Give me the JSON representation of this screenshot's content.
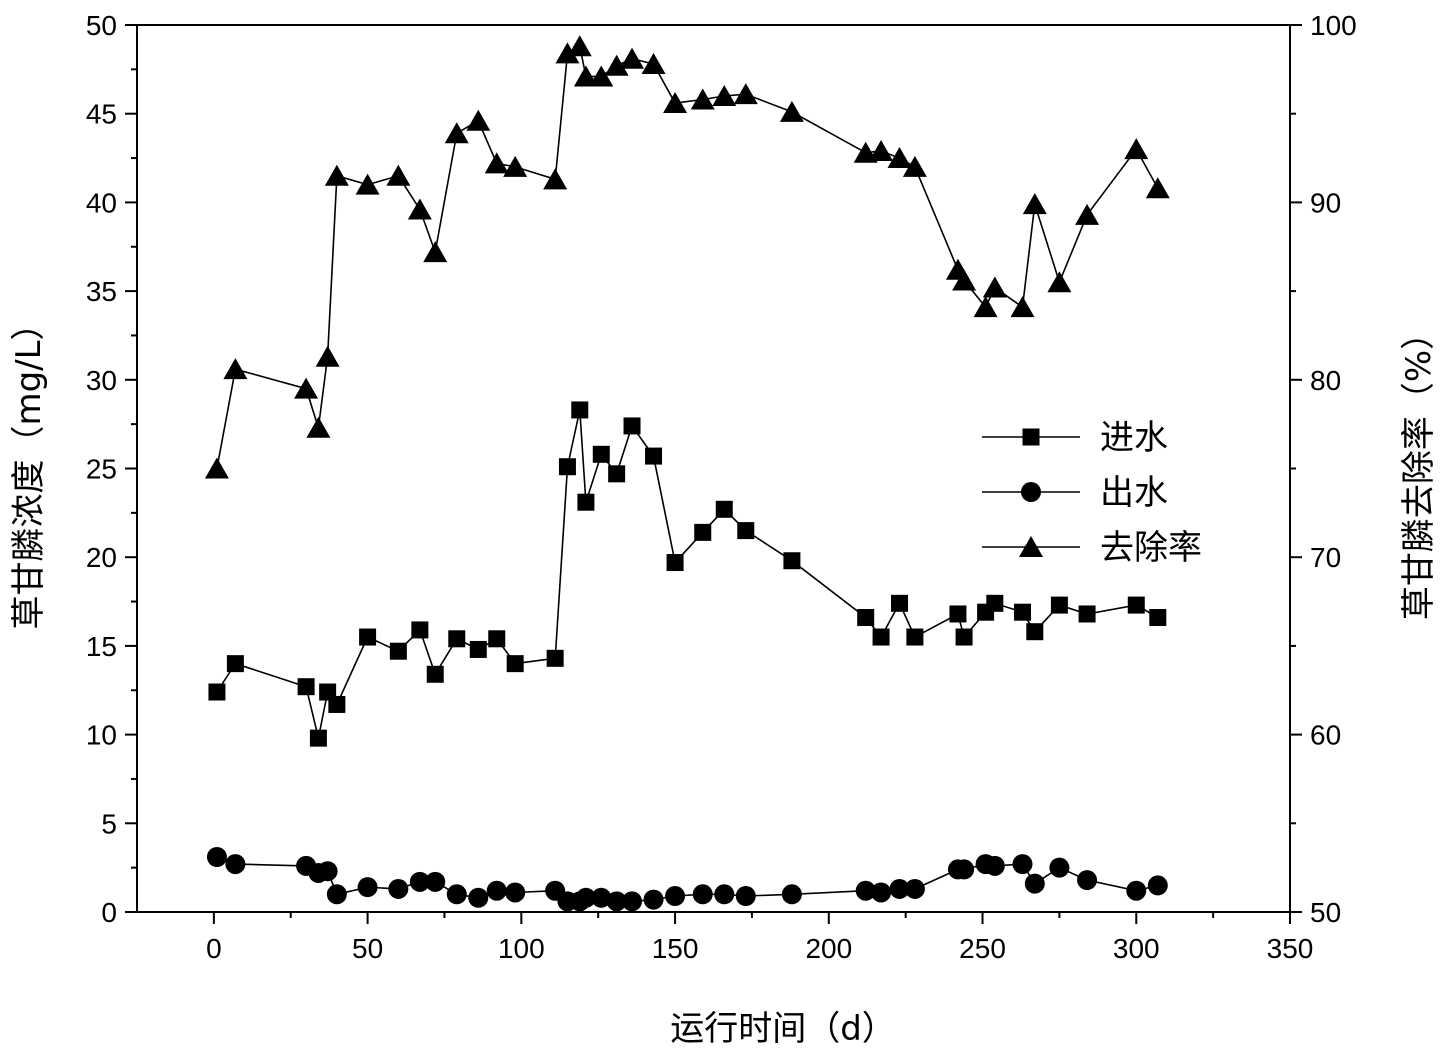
{
  "chart_data": {
    "type": "line",
    "xlabel": "运行时间（d）",
    "ylabel": "草甘膦浓度（mg/L）",
    "y2label": "草甘膦去除率（%）",
    "xlim": [
      -25,
      350
    ],
    "ylim": [
      0,
      50
    ],
    "y2lim": [
      50,
      100
    ],
    "xticks": [
      0,
      50,
      100,
      150,
      200,
      250,
      300,
      350
    ],
    "yticks": [
      0,
      5,
      10,
      15,
      20,
      25,
      30,
      35,
      40,
      45,
      50
    ],
    "y2ticks": [
      50,
      60,
      70,
      80,
      90,
      100
    ],
    "legend_position": "right-middle",
    "series": [
      {
        "name": "进水",
        "axis": "left",
        "marker": "square",
        "x": [
          1,
          7,
          30,
          34,
          37,
          40,
          50,
          60,
          67,
          72,
          79,
          86,
          92,
          98,
          111,
          115,
          119,
          121,
          126,
          131,
          136,
          143,
          150,
          159,
          166,
          173,
          188,
          212,
          217,
          223,
          228,
          242,
          244,
          251,
          254,
          263,
          267,
          275,
          284,
          300,
          307
        ],
        "y": [
          12.4,
          14.0,
          12.7,
          9.8,
          12.4,
          11.7,
          15.5,
          14.7,
          15.9,
          13.4,
          15.4,
          14.8,
          15.4,
          14.0,
          14.3,
          25.1,
          28.3,
          23.1,
          25.8,
          24.7,
          27.4,
          25.7,
          19.7,
          21.4,
          22.7,
          21.5,
          19.8,
          16.6,
          15.5,
          17.4,
          15.5,
          16.8,
          15.5,
          16.9,
          17.4,
          16.9,
          15.8,
          17.3,
          16.8,
          17.3,
          16.6
        ]
      },
      {
        "name": "出水",
        "axis": "left",
        "marker": "circle",
        "x": [
          1,
          7,
          30,
          34,
          37,
          40,
          50,
          60,
          67,
          72,
          79,
          86,
          92,
          98,
          111,
          115,
          119,
          121,
          126,
          131,
          136,
          143,
          150,
          159,
          166,
          173,
          188,
          212,
          217,
          223,
          228,
          242,
          244,
          251,
          254,
          263,
          267,
          275,
          284,
          300,
          307
        ],
        "y": [
          3.1,
          2.7,
          2.6,
          2.2,
          2.3,
          1.0,
          1.4,
          1.3,
          1.7,
          1.7,
          1.0,
          0.8,
          1.2,
          1.1,
          1.2,
          0.6,
          0.6,
          0.8,
          0.8,
          0.6,
          0.6,
          0.7,
          0.9,
          1.0,
          1.0,
          0.9,
          1.0,
          1.2,
          1.1,
          1.3,
          1.3,
          2.4,
          2.4,
          2.7,
          2.6,
          2.7,
          1.6,
          2.5,
          1.8,
          1.2,
          1.5
        ]
      },
      {
        "name": "去除率",
        "axis": "right",
        "marker": "triangle",
        "x": [
          1,
          7,
          30,
          34,
          37,
          40,
          50,
          60,
          67,
          72,
          79,
          86,
          92,
          98,
          111,
          115,
          119,
          121,
          126,
          131,
          136,
          143,
          150,
          159,
          166,
          173,
          188,
          212,
          217,
          223,
          228,
          242,
          244,
          251,
          254,
          263,
          267,
          275,
          284,
          300,
          307
        ],
        "y": [
          75.0,
          80.6,
          79.5,
          77.3,
          81.3,
          91.5,
          91.0,
          91.5,
          89.6,
          87.2,
          93.9,
          94.6,
          92.2,
          92.0,
          91.3,
          98.4,
          98.8,
          97.1,
          97.1,
          97.7,
          98.1,
          97.8,
          95.6,
          95.8,
          96.0,
          96.1,
          95.1,
          92.8,
          92.9,
          92.5,
          92.0,
          86.2,
          85.6,
          84.1,
          85.2,
          84.1,
          89.9,
          85.5,
          89.3,
          93.0,
          90.8
        ]
      }
    ]
  }
}
